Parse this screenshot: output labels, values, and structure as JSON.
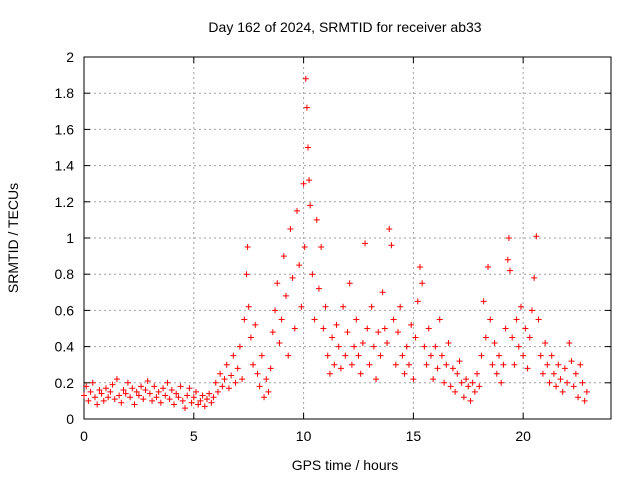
{
  "chart_data": {
    "type": "scatter",
    "title": "Day 162 of 2024, SRMTID for receiver ab33",
    "xlabel": "GPS time / hours",
    "ylabel": "SRMTID / TECUs",
    "xlim": [
      0,
      24.0
    ],
    "ylim": [
      0,
      2
    ],
    "xticks": [
      0,
      5,
      10,
      15,
      20
    ],
    "xtick_labels": [
      "0",
      "5",
      "10",
      "15",
      "20"
    ],
    "yticks": [
      0,
      0.2,
      0.4,
      0.6,
      0.8,
      1,
      1.2,
      1.4,
      1.6,
      1.8,
      2
    ],
    "ytick_labels": [
      "0",
      "0.2",
      "0.4",
      "0.6",
      "0.8",
      "1",
      "1.2",
      "1.4",
      "1.6",
      "1.8",
      "2"
    ],
    "grid": true,
    "marker": "+",
    "series": [
      {
        "name": "SRMTID",
        "color": "#ff0000",
        "points": [
          [
            0.0,
            0.13
          ],
          [
            0.1,
            0.18
          ],
          [
            0.2,
            0.1
          ],
          [
            0.3,
            0.15
          ],
          [
            0.4,
            0.2
          ],
          [
            0.5,
            0.12
          ],
          [
            0.6,
            0.08
          ],
          [
            0.7,
            0.16
          ],
          [
            0.8,
            0.14
          ],
          [
            0.9,
            0.1
          ],
          [
            1.0,
            0.17
          ],
          [
            1.1,
            0.12
          ],
          [
            1.2,
            0.15
          ],
          [
            1.3,
            0.19
          ],
          [
            1.4,
            0.11
          ],
          [
            1.5,
            0.22
          ],
          [
            1.6,
            0.13
          ],
          [
            1.7,
            0.09
          ],
          [
            1.8,
            0.16
          ],
          [
            1.9,
            0.14
          ],
          [
            2.0,
            0.2
          ],
          [
            2.1,
            0.12
          ],
          [
            2.2,
            0.17
          ],
          [
            2.3,
            0.08
          ],
          [
            2.4,
            0.15
          ],
          [
            2.5,
            0.13
          ],
          [
            2.6,
            0.18
          ],
          [
            2.7,
            0.11
          ],
          [
            2.8,
            0.16
          ],
          [
            2.9,
            0.21
          ],
          [
            3.0,
            0.14
          ],
          [
            3.1,
            0.1
          ],
          [
            3.2,
            0.18
          ],
          [
            3.3,
            0.12
          ],
          [
            3.4,
            0.15
          ],
          [
            3.5,
            0.09
          ],
          [
            3.6,
            0.17
          ],
          [
            3.7,
            0.13
          ],
          [
            3.8,
            0.2
          ],
          [
            3.9,
            0.11
          ],
          [
            4.0,
            0.16
          ],
          [
            4.1,
            0.08
          ],
          [
            4.2,
            0.14
          ],
          [
            4.3,
            0.12
          ],
          [
            4.4,
            0.18
          ],
          [
            4.5,
            0.1
          ],
          [
            4.6,
            0.06
          ],
          [
            4.7,
            0.13
          ],
          [
            4.8,
            0.17
          ],
          [
            4.9,
            0.09
          ],
          [
            5.0,
            0.12
          ],
          [
            5.1,
            0.15
          ],
          [
            5.2,
            0.08
          ],
          [
            5.3,
            0.1
          ],
          [
            5.4,
            0.13
          ],
          [
            5.5,
            0.07
          ],
          [
            5.6,
            0.11
          ],
          [
            5.7,
            0.14
          ],
          [
            5.8,
            0.09
          ],
          [
            5.9,
            0.12
          ],
          [
            6.0,
            0.2
          ],
          [
            6.1,
            0.15
          ],
          [
            6.2,
            0.25
          ],
          [
            6.3,
            0.18
          ],
          [
            6.4,
            0.22
          ],
          [
            6.5,
            0.3
          ],
          [
            6.6,
            0.17
          ],
          [
            6.7,
            0.24
          ],
          [
            6.8,
            0.35
          ],
          [
            6.9,
            0.2
          ],
          [
            7.0,
            0.28
          ],
          [
            7.1,
            0.4
          ],
          [
            7.2,
            0.22
          ],
          [
            7.3,
            0.55
          ],
          [
            7.4,
            0.8
          ],
          [
            7.45,
            0.95
          ],
          [
            7.5,
            0.62
          ],
          [
            7.6,
            0.45
          ],
          [
            7.7,
            0.3
          ],
          [
            7.8,
            0.52
          ],
          [
            7.9,
            0.25
          ],
          [
            8.0,
            0.18
          ],
          [
            8.1,
            0.35
          ],
          [
            8.2,
            0.12
          ],
          [
            8.3,
            0.22
          ],
          [
            8.4,
            0.15
          ],
          [
            8.5,
            0.28
          ],
          [
            8.6,
            0.48
          ],
          [
            8.7,
            0.6
          ],
          [
            8.8,
            0.75
          ],
          [
            8.9,
            0.42
          ],
          [
            9.0,
            0.55
          ],
          [
            9.1,
            0.9
          ],
          [
            9.2,
            0.68
          ],
          [
            9.3,
            0.35
          ],
          [
            9.4,
            1.05
          ],
          [
            9.5,
            0.78
          ],
          [
            9.6,
            0.5
          ],
          [
            9.7,
            1.15
          ],
          [
            9.8,
            0.85
          ],
          [
            9.9,
            0.62
          ],
          [
            10.0,
            1.3
          ],
          [
            10.05,
            0.95
          ],
          [
            10.1,
            1.88
          ],
          [
            10.15,
            1.72
          ],
          [
            10.2,
            1.5
          ],
          [
            10.25,
            1.32
          ],
          [
            10.3,
            1.18
          ],
          [
            10.4,
            0.8
          ],
          [
            10.5,
            0.55
          ],
          [
            10.6,
            1.1
          ],
          [
            10.7,
            0.72
          ],
          [
            10.8,
            0.95
          ],
          [
            10.9,
            0.5
          ],
          [
            11.0,
            0.62
          ],
          [
            11.1,
            0.35
          ],
          [
            11.2,
            0.25
          ],
          [
            11.3,
            0.45
          ],
          [
            11.4,
            0.3
          ],
          [
            11.5,
            0.52
          ],
          [
            11.6,
            0.4
          ],
          [
            11.7,
            0.28
          ],
          [
            11.8,
            0.62
          ],
          [
            11.9,
            0.35
          ],
          [
            12.0,
            0.48
          ],
          [
            12.1,
            0.75
          ],
          [
            12.2,
            0.3
          ],
          [
            12.3,
            0.4
          ],
          [
            12.4,
            0.55
          ],
          [
            12.5,
            0.35
          ],
          [
            12.6,
            0.25
          ],
          [
            12.7,
            0.42
          ],
          [
            12.8,
            0.97
          ],
          [
            12.9,
            0.5
          ],
          [
            13.0,
            0.3
          ],
          [
            13.1,
            0.62
          ],
          [
            13.2,
            0.4
          ],
          [
            13.3,
            0.22
          ],
          [
            13.4,
            0.48
          ],
          [
            13.5,
            0.35
          ],
          [
            13.6,
            0.7
          ],
          [
            13.7,
            0.5
          ],
          [
            13.8,
            0.42
          ],
          [
            13.9,
            1.05
          ],
          [
            14.0,
            0.96
          ],
          [
            14.1,
            0.55
          ],
          [
            14.2,
            0.3
          ],
          [
            14.3,
            0.48
          ],
          [
            14.4,
            0.62
          ],
          [
            14.5,
            0.35
          ],
          [
            14.6,
            0.25
          ],
          [
            14.7,
            0.4
          ],
          [
            14.8,
            0.3
          ],
          [
            14.9,
            0.52
          ],
          [
            15.0,
            0.22
          ],
          [
            15.1,
            0.45
          ],
          [
            15.2,
            0.65
          ],
          [
            15.3,
            0.84
          ],
          [
            15.4,
            0.75
          ],
          [
            15.5,
            0.4
          ],
          [
            15.6,
            0.3
          ],
          [
            15.7,
            0.5
          ],
          [
            15.8,
            0.35
          ],
          [
            15.9,
            0.22
          ],
          [
            16.0,
            0.4
          ],
          [
            16.1,
            0.28
          ],
          [
            16.2,
            0.55
          ],
          [
            16.3,
            0.35
          ],
          [
            16.4,
            0.2
          ],
          [
            16.5,
            0.3
          ],
          [
            16.6,
            0.42
          ],
          [
            16.7,
            0.18
          ],
          [
            16.8,
            0.28
          ],
          [
            16.9,
            0.15
          ],
          [
            17.0,
            0.25
          ],
          [
            17.1,
            0.32
          ],
          [
            17.2,
            0.2
          ],
          [
            17.3,
            0.12
          ],
          [
            17.4,
            0.22
          ],
          [
            17.5,
            0.18
          ],
          [
            17.6,
            0.1
          ],
          [
            17.7,
            0.2
          ],
          [
            17.8,
            0.15
          ],
          [
            17.9,
            0.25
          ],
          [
            18.0,
            0.18
          ],
          [
            18.1,
            0.35
          ],
          [
            18.2,
            0.65
          ],
          [
            18.3,
            0.45
          ],
          [
            18.4,
            0.84
          ],
          [
            18.5,
            0.55
          ],
          [
            18.6,
            0.3
          ],
          [
            18.7,
            0.42
          ],
          [
            18.8,
            0.25
          ],
          [
            18.9,
            0.35
          ],
          [
            19.0,
            0.2
          ],
          [
            19.1,
            0.3
          ],
          [
            19.2,
            0.5
          ],
          [
            19.3,
            0.88
          ],
          [
            19.35,
            1.0
          ],
          [
            19.4,
            0.82
          ],
          [
            19.5,
            0.45
          ],
          [
            19.6,
            0.3
          ],
          [
            19.7,
            0.55
          ],
          [
            19.8,
            0.4
          ],
          [
            19.9,
            0.62
          ],
          [
            20.0,
            0.35
          ],
          [
            20.1,
            0.5
          ],
          [
            20.2,
            0.28
          ],
          [
            20.3,
            0.45
          ],
          [
            20.4,
            0.6
          ],
          [
            20.5,
            0.78
          ],
          [
            20.6,
            1.01
          ],
          [
            20.7,
            0.55
          ],
          [
            20.8,
            0.35
          ],
          [
            20.9,
            0.25
          ],
          [
            21.0,
            0.42
          ],
          [
            21.1,
            0.3
          ],
          [
            21.2,
            0.2
          ],
          [
            21.3,
            0.35
          ],
          [
            21.4,
            0.25
          ],
          [
            21.5,
            0.18
          ],
          [
            21.6,
            0.3
          ],
          [
            21.7,
            0.22
          ],
          [
            21.8,
            0.15
          ],
          [
            21.9,
            0.28
          ],
          [
            22.0,
            0.2
          ],
          [
            22.1,
            0.42
          ],
          [
            22.2,
            0.32
          ],
          [
            22.3,
            0.18
          ],
          [
            22.4,
            0.25
          ],
          [
            22.5,
            0.12
          ],
          [
            22.6,
            0.3
          ],
          [
            22.7,
            0.2
          ],
          [
            22.8,
            0.1
          ],
          [
            22.9,
            0.15
          ]
        ]
      }
    ]
  }
}
